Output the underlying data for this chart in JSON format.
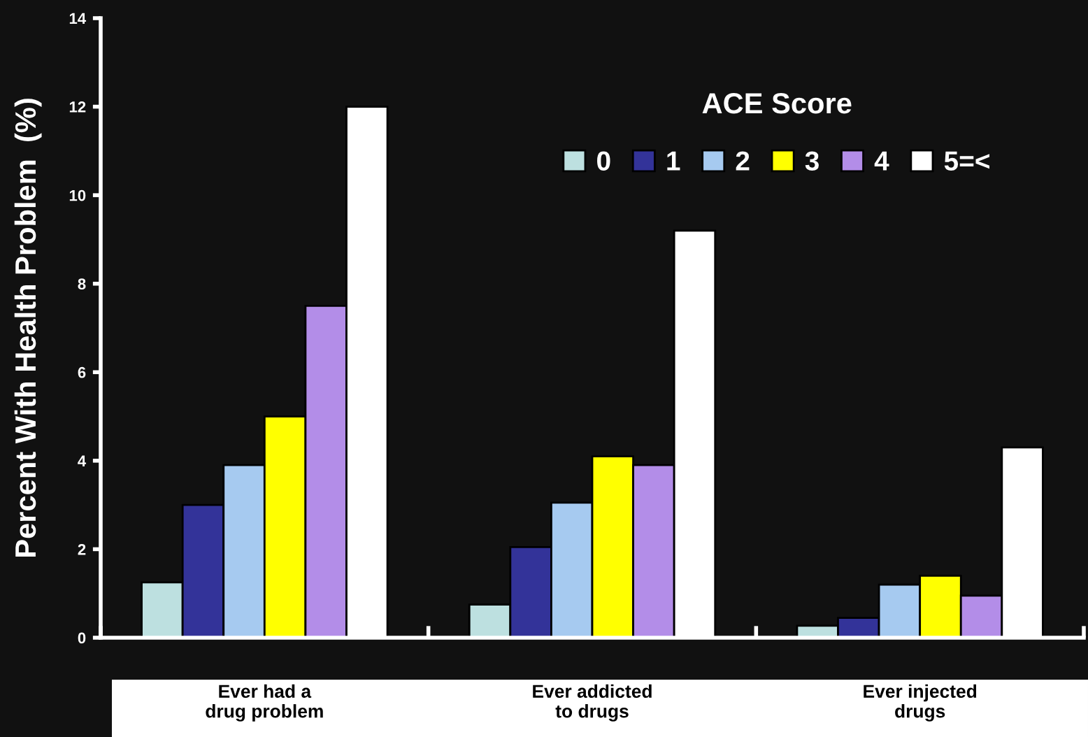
{
  "chart_data": {
    "type": "bar",
    "ylabel": "Percent With Health Problem  (%)",
    "legend_title": "ACE Score",
    "categories": [
      "Ever had a\ndrug problem",
      "Ever addicted\nto drugs",
      "Ever injected\ndrugs"
    ],
    "series": [
      {
        "name": "0",
        "color": "#bde0e0",
        "values": [
          1.25,
          0.75,
          0.27
        ]
      },
      {
        "name": "1",
        "color": "#333399",
        "values": [
          3.0,
          2.05,
          0.45
        ]
      },
      {
        "name": "2",
        "color": "#a6caf0",
        "values": [
          3.9,
          3.05,
          1.2
        ]
      },
      {
        "name": "3",
        "color": "#ffff00",
        "values": [
          5.0,
          4.1,
          1.4
        ]
      },
      {
        "name": "4",
        "color": "#b38de8",
        "values": [
          7.5,
          3.9,
          0.95
        ]
      },
      {
        "name": "5=<",
        "color": "#ffffff",
        "values": [
          12.0,
          9.2,
          4.3
        ]
      }
    ],
    "ylim": [
      0,
      14
    ],
    "yticks": [
      0,
      2,
      4,
      6,
      8,
      10,
      12,
      14
    ],
    "grid": false,
    "legend": "top right"
  }
}
